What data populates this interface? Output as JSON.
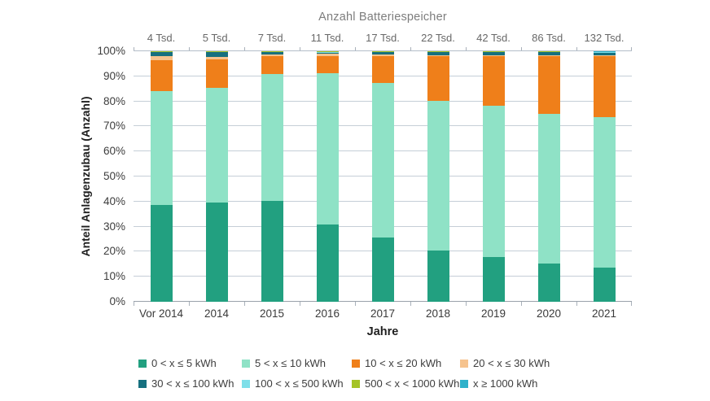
{
  "chart_data": {
    "type": "bar",
    "stacked": true,
    "title": "Anzahl Batteriespeicher",
    "ylabel": "Anteil Anlagenzubau (Anzahl)",
    "xlabel": "Jahre",
    "ylim": [
      0,
      100
    ],
    "grid": true,
    "legend_position": "bottom",
    "y_tick_labels": [
      "0%",
      "10%",
      "20%",
      "30%",
      "40%",
      "50%",
      "60%",
      "70%",
      "80%",
      "90%",
      "100%"
    ],
    "categories": [
      "Vor 2014",
      "2014",
      "2015",
      "2016",
      "2017",
      "2018",
      "2019",
      "2020",
      "2021"
    ],
    "top_axis_labels": [
      "4 Tsd.",
      "5 Tsd.",
      "7 Tsd.",
      "11 Tsd.",
      "17 Tsd.",
      "22 Tsd.",
      "42 Tsd.",
      "86 Tsd.",
      "132 Tsd."
    ],
    "series": [
      {
        "name": "0 < x ≤ 5 kWh",
        "color": "#22a080",
        "values": [
          38.5,
          39.6,
          40.3,
          31.0,
          25.8,
          20.3,
          17.8,
          15.3,
          13.5
        ]
      },
      {
        "name": "5 < x ≤ 10 kWh",
        "color": "#8fe2c6",
        "values": [
          45.5,
          45.7,
          50.5,
          60.3,
          61.6,
          60.0,
          60.5,
          59.7,
          60.2
        ]
      },
      {
        "name": "10 < x ≤ 20 kWh",
        "color": "#ef7f1a",
        "values": [
          12.4,
          11.6,
          7.4,
          6.9,
          10.8,
          17.8,
          19.7,
          23.0,
          24.2
        ]
      },
      {
        "name": "20 < x ≤ 30 kWh",
        "color": "#f6c38e",
        "values": [
          1.8,
          1.0,
          0.5,
          0.7,
          0.4,
          0.3,
          0.4,
          0.3,
          0.5
        ]
      },
      {
        "name": "30 < x ≤ 100 kWh",
        "color": "#16707f",
        "values": [
          1.4,
          1.7,
          0.9,
          0.5,
          1.0,
          1.2,
          1.3,
          1.3,
          1.1
        ]
      },
      {
        "name": "100 < x ≤ 500 kWh",
        "color": "#7fdfe9",
        "values": [
          0.2,
          0.2,
          0.2,
          0.3,
          0.2,
          0.2,
          0.1,
          0.2,
          0.2
        ]
      },
      {
        "name": "500 < x < 1000 kWh",
        "color": "#a5c427",
        "values": [
          0.1,
          0.1,
          0.1,
          0.2,
          0.1,
          0.1,
          0.1,
          0.1,
          0.1
        ]
      },
      {
        "name": "x ≥ 1000 kWh",
        "color": "#2fb1ca",
        "values": [
          0.1,
          0.1,
          0.1,
          0.1,
          0.1,
          0.1,
          0.1,
          0.1,
          0.2
        ]
      }
    ],
    "legend_rows": [
      [
        0,
        1,
        2,
        3
      ],
      [
        4,
        5,
        6,
        7
      ]
    ],
    "colors": {
      "gridline": "#c5ced7",
      "axis_line_bottom": "#9aa2ab",
      "axis_line_top": "#b4bec8",
      "tick": "#a9b1ba"
    }
  }
}
